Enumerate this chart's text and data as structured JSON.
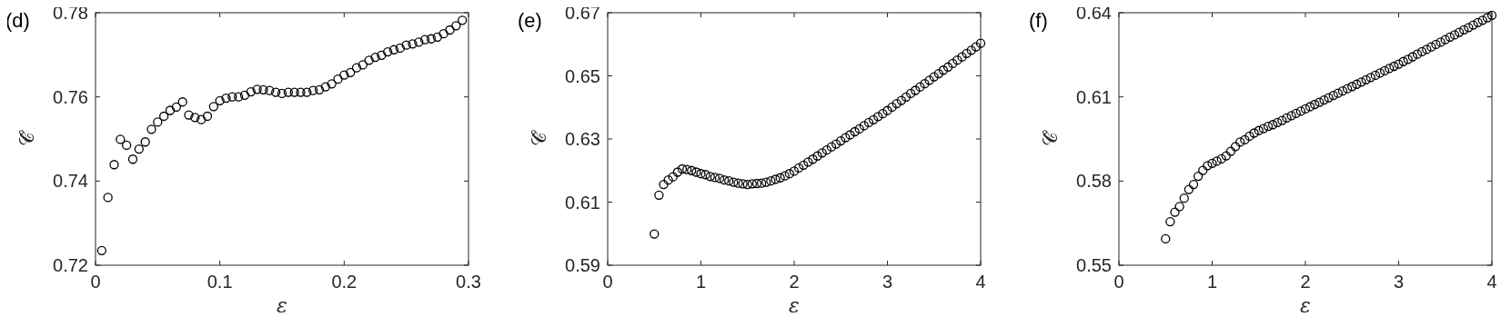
{
  "chart_data": [
    {
      "type": "scatter",
      "title": "(d)",
      "xlabel": "ε",
      "ylabel": "𝒞̂",
      "marker": "circle",
      "xlim": [
        0,
        0.3
      ],
      "xticks": [
        0,
        0.1,
        0.2,
        0.3
      ],
      "ylim": [
        0.72,
        0.78
      ],
      "yticks": [
        0.72,
        0.74,
        0.76,
        0.78
      ],
      "series": [
        {
          "color": "#000000",
          "x": [
            0.005,
            0.01,
            0.015,
            0.02,
            0.025,
            0.03,
            0.035,
            0.04,
            0.045,
            0.05,
            0.055,
            0.06,
            0.065,
            0.07,
            0.075,
            0.08,
            0.085,
            0.09,
            0.095,
            0.1,
            0.105,
            0.11,
            0.115,
            0.12,
            0.125,
            0.13,
            0.135,
            0.14,
            0.145,
            0.15,
            0.155,
            0.16,
            0.165,
            0.17,
            0.175,
            0.18,
            0.185,
            0.19,
            0.195,
            0.2,
            0.205,
            0.21,
            0.215,
            0.22,
            0.225,
            0.23,
            0.235,
            0.24,
            0.245,
            0.25,
            0.255,
            0.26,
            0.265,
            0.27,
            0.275,
            0.28,
            0.285,
            0.29,
            0.295
          ],
          "values": [
            0.7235,
            0.7361,
            0.7439,
            0.7499,
            0.7485,
            0.7452,
            0.7476,
            0.7493,
            0.7523,
            0.754,
            0.7554,
            0.7568,
            0.7576,
            0.7588,
            0.7557,
            0.7551,
            0.7546,
            0.7554,
            0.7577,
            0.7591,
            0.7597,
            0.76,
            0.76,
            0.7604,
            0.7612,
            0.7618,
            0.7617,
            0.7615,
            0.7611,
            0.7608,
            0.7611,
            0.7611,
            0.7611,
            0.7611,
            0.7615,
            0.7617,
            0.7624,
            0.7631,
            0.7642,
            0.7652,
            0.7658,
            0.7669,
            0.7676,
            0.7687,
            0.7694,
            0.7699,
            0.7707,
            0.7712,
            0.7716,
            0.7723,
            0.7726,
            0.773,
            0.7736,
            0.7738,
            0.7742,
            0.775,
            0.7759,
            0.7769,
            0.7782
          ]
        }
      ]
    },
    {
      "type": "scatter",
      "title": "(e)",
      "xlabel": "ε",
      "ylabel": "𝒞̂",
      "marker": "circle",
      "xlim": [
        0,
        4
      ],
      "xticks": [
        0,
        1,
        2,
        3,
        4
      ],
      "ylim": [
        0.59,
        0.67
      ],
      "yticks": [
        0.59,
        0.61,
        0.63,
        0.65,
        0.67
      ],
      "series": [
        {
          "color": "#000000",
          "x": [
            0.5,
            0.55,
            0.6,
            0.65,
            0.7,
            0.75,
            0.8,
            0.85,
            0.9,
            0.95,
            1,
            1.05,
            1.1,
            1.15,
            1.2,
            1.25,
            1.3,
            1.35,
            1.4,
            1.45,
            1.5,
            1.55,
            1.6,
            1.65,
            1.7,
            1.75,
            1.8,
            1.85,
            1.9,
            1.95,
            2,
            2.05,
            2.1,
            2.15,
            2.2,
            2.25,
            2.3,
            2.35,
            2.4,
            2.45,
            2.5,
            2.55,
            2.6,
            2.65,
            2.7,
            2.75,
            2.8,
            2.85,
            2.9,
            2.95,
            3,
            3.05,
            3.1,
            3.15,
            3.2,
            3.25,
            3.3,
            3.35,
            3.4,
            3.45,
            3.5,
            3.55,
            3.6,
            3.65,
            3.7,
            3.75,
            3.8,
            3.85,
            3.9,
            3.95,
            4
          ],
          "values": [
            0.5999,
            0.6122,
            0.6156,
            0.617,
            0.618,
            0.6195,
            0.6205,
            0.6203,
            0.62,
            0.6195,
            0.619,
            0.6187,
            0.6181,
            0.6178,
            0.6175,
            0.617,
            0.6167,
            0.6163,
            0.616,
            0.6158,
            0.6156,
            0.6158,
            0.6159,
            0.616,
            0.6163,
            0.6167,
            0.6172,
            0.6177,
            0.6183,
            0.619,
            0.6198,
            0.6208,
            0.6217,
            0.6227,
            0.6236,
            0.6246,
            0.6256,
            0.6265,
            0.6275,
            0.6284,
            0.6294,
            0.6304,
            0.6313,
            0.6323,
            0.6332,
            0.6342,
            0.6352,
            0.6361,
            0.6371,
            0.638,
            0.639,
            0.6401,
            0.6412,
            0.6422,
            0.6433,
            0.6444,
            0.6454,
            0.6465,
            0.6475,
            0.6486,
            0.6497,
            0.6507,
            0.6518,
            0.6528,
            0.6539,
            0.655,
            0.656,
            0.6571,
            0.6581,
            0.6592,
            0.6603
          ]
        }
      ]
    },
    {
      "type": "scatter",
      "title": "(f)",
      "xlabel": "ε",
      "ylabel": "𝒞̂",
      "marker": "circle",
      "xlim": [
        0,
        4
      ],
      "xticks": [
        0,
        1,
        2,
        3,
        4
      ],
      "ylim": [
        0.55,
        0.64
      ],
      "yticks": [
        0.55,
        0.58,
        0.61,
        0.64
      ],
      "series": [
        {
          "color": "#000000",
          "x": [
            0.5,
            0.55,
            0.6,
            0.65,
            0.7,
            0.75,
            0.8,
            0.85,
            0.9,
            0.95,
            1,
            1.05,
            1.1,
            1.15,
            1.2,
            1.25,
            1.3,
            1.35,
            1.4,
            1.45,
            1.5,
            1.55,
            1.6,
            1.65,
            1.7,
            1.75,
            1.8,
            1.85,
            1.9,
            1.95,
            2,
            2.05,
            2.1,
            2.15,
            2.2,
            2.25,
            2.3,
            2.35,
            2.4,
            2.45,
            2.5,
            2.55,
            2.6,
            2.65,
            2.7,
            2.75,
            2.8,
            2.85,
            2.9,
            2.95,
            3,
            3.05,
            3.1,
            3.15,
            3.2,
            3.25,
            3.3,
            3.35,
            3.4,
            3.45,
            3.5,
            3.55,
            3.6,
            3.65,
            3.7,
            3.75,
            3.8,
            3.85,
            3.9,
            3.95,
            4
          ],
          "values": [
            0.5594,
            0.5655,
            0.5689,
            0.5709,
            0.5739,
            0.577,
            0.5788,
            0.5817,
            0.5838,
            0.5855,
            0.5863,
            0.5871,
            0.5879,
            0.589,
            0.5906,
            0.5923,
            0.5939,
            0.5947,
            0.596,
            0.5971,
            0.598,
            0.5987,
            0.5995,
            0.6001,
            0.6009,
            0.6016,
            0.6025,
            0.6033,
            0.6041,
            0.6049,
            0.6057,
            0.6065,
            0.6073,
            0.6081,
            0.6089,
            0.6097,
            0.6105,
            0.6113,
            0.6121,
            0.6129,
            0.6137,
            0.6145,
            0.6153,
            0.6161,
            0.6169,
            0.6177,
            0.6185,
            0.6193,
            0.6201,
            0.6209,
            0.6217,
            0.6226,
            0.6234,
            0.6243,
            0.6252,
            0.6261,
            0.6269,
            0.6278,
            0.6287,
            0.6295,
            0.6304,
            0.6313,
            0.6321,
            0.633,
            0.6339,
            0.6347,
            0.6356,
            0.6365,
            0.6373,
            0.6382,
            0.6391
          ]
        }
      ]
    }
  ]
}
